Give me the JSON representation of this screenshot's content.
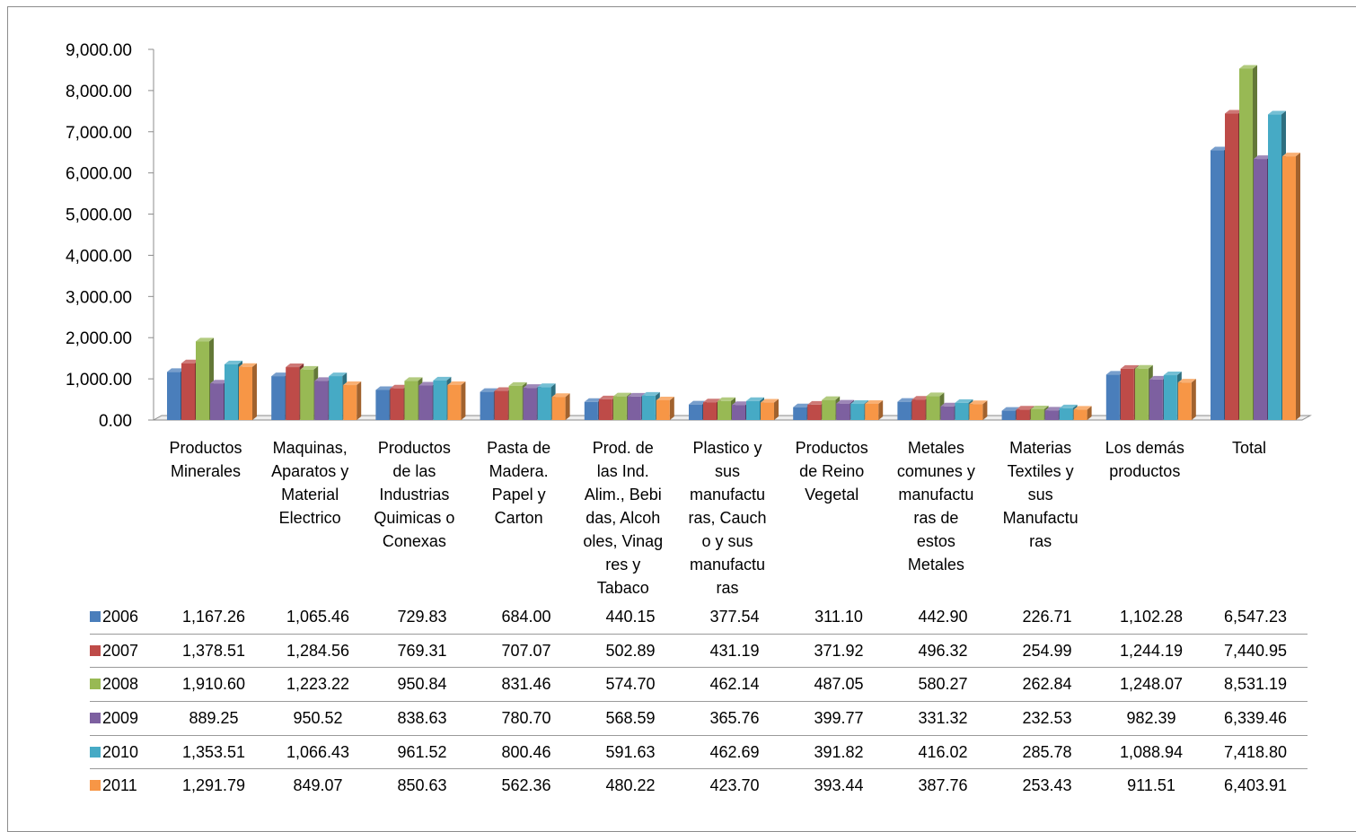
{
  "chart_data": {
    "type": "bar",
    "title": "",
    "xlabel": "",
    "ylabel": "",
    "ylim": [
      0,
      9000
    ],
    "y_ticks": [
      "0.00",
      "1,000.00",
      "2,000.00",
      "3,000.00",
      "4,000.00",
      "5,000.00",
      "6,000.00",
      "7,000.00",
      "8,000.00",
      "9,000.00"
    ],
    "grid": false,
    "legend": "table-left",
    "categories": [
      "Productos\nMinerales",
      "Maquinas,\nAparatos y\nMaterial\nElectrico",
      "Productos\nde las\nIndustrias\nQuimicas o\nConexas",
      "Pasta de\nMadera.\nPapel y\nCarton",
      "Prod. de\nlas Ind.\nAlim., Bebi\ndas, Alcoh\noles, Vinag\nres y\nTabaco",
      "Plastico y\nsus\nmanufactu\nras, Cauch\no y sus\nmanufactu\nras",
      "Productos\nde Reino\nVegetal",
      "Metales\ncomunes y\nmanufactu\nras de\nestos\nMetales",
      "Materias\nTextiles y\nsus\nManufactu\nras",
      "Los demás\nproductos",
      "Total"
    ],
    "series": [
      {
        "name": "2006",
        "color": "#4a7ebb",
        "values": [
          1167.26,
          1065.46,
          729.83,
          684.0,
          440.15,
          377.54,
          311.1,
          442.9,
          226.71,
          1102.28,
          6547.23
        ],
        "labels": [
          "1,167.26",
          "1,065.46",
          "729.83",
          "684.00",
          "440.15",
          "377.54",
          "311.10",
          "442.90",
          "226.71",
          "1,102.28",
          "6,547.23"
        ]
      },
      {
        "name": "2007",
        "color": "#be4b48",
        "values": [
          1378.51,
          1284.56,
          769.31,
          707.07,
          502.89,
          431.19,
          371.92,
          496.32,
          254.99,
          1244.19,
          7440.95
        ],
        "labels": [
          "1,378.51",
          "1,284.56",
          "769.31",
          "707.07",
          "502.89",
          "431.19",
          "371.92",
          "496.32",
          "254.99",
          "1,244.19",
          "7,440.95"
        ]
      },
      {
        "name": "2008",
        "color": "#98b954",
        "values": [
          1910.6,
          1223.22,
          950.84,
          831.46,
          574.7,
          462.14,
          487.05,
          580.27,
          262.84,
          1248.07,
          8531.19
        ],
        "labels": [
          "1,910.60",
          "1,223.22",
          "950.84",
          "831.46",
          "574.70",
          "462.14",
          "487.05",
          "580.27",
          "262.84",
          "1,248.07",
          "8,531.19"
        ]
      },
      {
        "name": "2009",
        "color": "#7d60a0",
        "values": [
          889.25,
          950.52,
          838.63,
          780.7,
          568.59,
          365.76,
          399.77,
          331.32,
          232.53,
          982.39,
          6339.46
        ],
        "labels": [
          "889.25",
          "950.52",
          "838.63",
          "780.70",
          "568.59",
          "365.76",
          "399.77",
          "331.32",
          "232.53",
          "982.39",
          "6,339.46"
        ]
      },
      {
        "name": "2010",
        "color": "#46aac5",
        "values": [
          1353.51,
          1066.43,
          961.52,
          800.46,
          591.63,
          462.69,
          391.82,
          416.02,
          285.78,
          1088.94,
          7418.8
        ],
        "labels": [
          "1,353.51",
          "1,066.43",
          "961.52",
          "800.46",
          "591.63",
          "462.69",
          "391.82",
          "416.02",
          "285.78",
          "1,088.94",
          "7,418.80"
        ]
      },
      {
        "name": "2011",
        "color": "#f79646",
        "values": [
          1291.79,
          849.07,
          850.63,
          562.36,
          480.22,
          423.7,
          393.44,
          387.76,
          253.43,
          911.51,
          6403.91
        ],
        "labels": [
          "1,291.79",
          "849.07",
          "850.63",
          "562.36",
          "480.22",
          "423.70",
          "393.44",
          "387.76",
          "253.43",
          "911.51",
          "6,403.91"
        ]
      }
    ]
  }
}
